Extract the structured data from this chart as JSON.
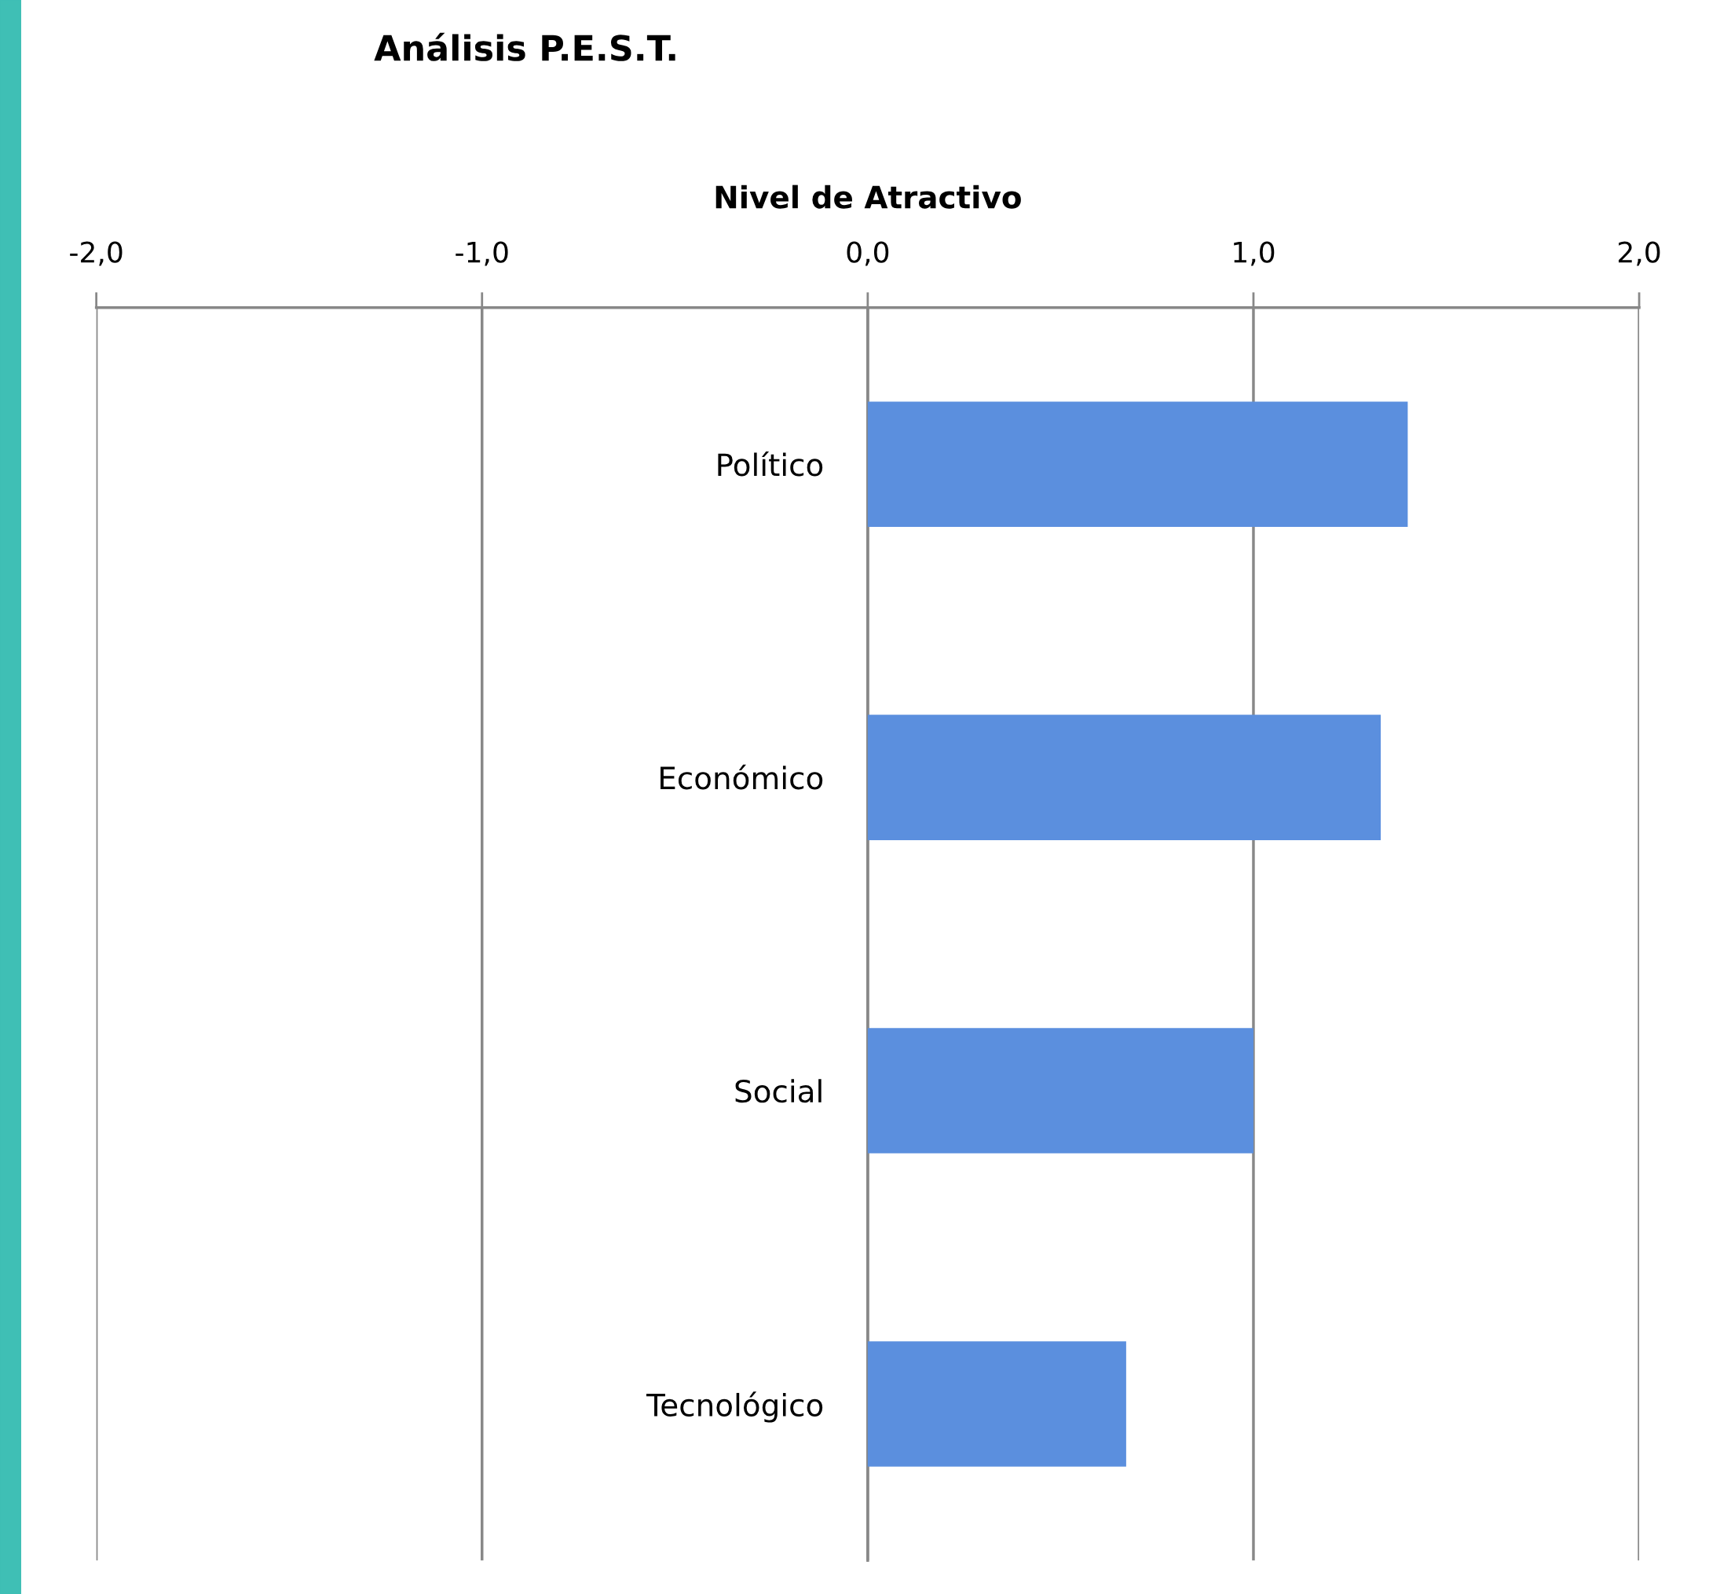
{
  "chart_data": {
    "type": "bar",
    "orientation": "horizontal",
    "title": "Análisis P.E.S.T.",
    "xlabel": "Nivel de Atractivo",
    "categories": [
      "Político",
      "Económico",
      "Social",
      "Tecnológico"
    ],
    "values": [
      1.4,
      1.33,
      1.0,
      0.67
    ],
    "color": "#5b8fde",
    "xlim": [
      -2.0,
      2.0
    ],
    "xticks": [
      {
        "value": -2.0,
        "label": "-2,0"
      },
      {
        "value": -1.0,
        "label": "-1,0"
      },
      {
        "value": 0.0,
        "label": "0,0"
      },
      {
        "value": 1.0,
        "label": "1,0"
      },
      {
        "value": 2.0,
        "label": "2,0"
      }
    ],
    "grid": "x",
    "legend": false
  }
}
